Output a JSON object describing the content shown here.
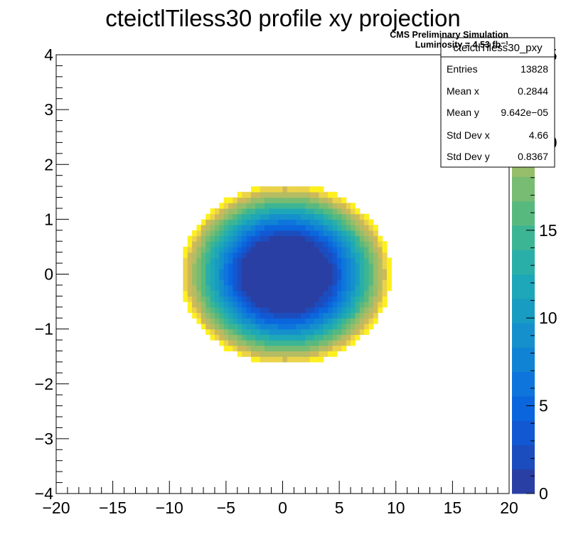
{
  "chart_data": {
    "type": "heatmap",
    "title": "cteictlTiless30 profile xy projection",
    "xlabel": "",
    "ylabel": "",
    "xlim": [
      -20,
      20
    ],
    "ylim": [
      -4,
      4
    ],
    "x_ticks": [
      -20,
      -15,
      -10,
      -5,
      0,
      5,
      10,
      15,
      20
    ],
    "x_tick_labels": [
      "−20",
      "−15",
      "−10",
      "−5",
      "0",
      "5",
      "10",
      "15",
      "20"
    ],
    "y_ticks": [
      -4,
      -3,
      -2,
      -1,
      0,
      1,
      2,
      3,
      4
    ],
    "y_tick_labels": [
      "−4",
      "−3",
      "−2",
      "−1",
      "0",
      "1",
      "2",
      "3",
      "4"
    ],
    "z_range": [
      0,
      25
    ],
    "z_ticks": [
      0,
      5,
      10,
      15,
      20,
      25
    ],
    "z_tick_labels": [
      "0",
      "5",
      "10",
      "15",
      "20",
      "25"
    ],
    "palette": [
      "#2a3fa3",
      "#1b4dbf",
      "#1258d3",
      "#0b66dd",
      "#0e75dc",
      "#1183d4",
      "#1590cc",
      "#189cc2",
      "#1da7b8",
      "#2aafa8",
      "#3cb594",
      "#58b97f",
      "#77bc72",
      "#96bd6a",
      "#b5bc63",
      "#cdb95a",
      "#ead34a",
      "#fef01f"
    ],
    "distribution": {
      "center_x": 0.3,
      "center_y": 0.0,
      "radius_x": 9.3,
      "radius_y": 1.65,
      "inner_radius_fraction": 0.38,
      "bins_x": 100,
      "bins_y": 80,
      "value_at_inner_edge": 0,
      "value_at_outer_edge": 25
    },
    "annotations": {
      "cms_line1": "CMS Preliminary Simulation",
      "cms_line2": "Luminosity = 4.53 fb⁻¹"
    },
    "stats_box": {
      "name": "cteictlTiless30_pxy",
      "entries_label": "Entries",
      "entries": "13828",
      "mean_x_label": "Mean x",
      "mean_x": "0.2844",
      "mean_y_label": "Mean y",
      "mean_y": "9.642e−05",
      "std_x_label": "Std Dev x",
      "std_x": "4.66",
      "std_y_label": "Std Dev y",
      "std_y": "0.8367"
    }
  }
}
